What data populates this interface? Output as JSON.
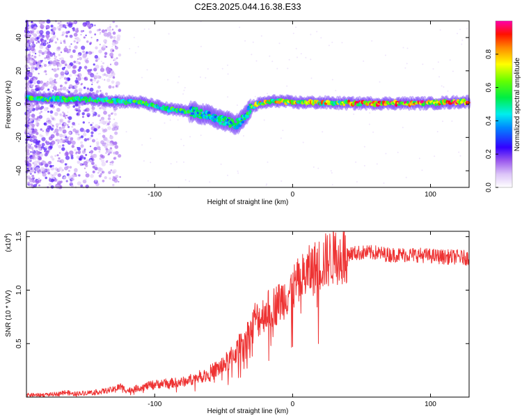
{
  "title": "C2E3.2025.044.16.38.E33",
  "chart_data": [
    {
      "type": "heatmap",
      "xlabel": "Height of straight line (km)",
      "ylabel": "Frequency (Hz)",
      "xlim": [
        -193,
        128
      ],
      "ylim": [
        -50,
        50
      ],
      "xticks": [
        -100,
        0,
        100
      ],
      "yticks": [
        -40,
        -20,
        0,
        20,
        40
      ],
      "grid": false,
      "colorbar": {
        "label": "Normalized spectral amplitude",
        "range": [
          0.0,
          1.0
        ],
        "ticks": [
          "0.0",
          "0.2",
          "0.4",
          "0.6",
          "0.8"
        ],
        "tick_values": [
          0.0,
          0.2,
          0.4,
          0.6,
          0.8
        ]
      },
      "ridge": {
        "x": [
          -193,
          -170,
          -150,
          -130,
          -110,
          -100,
          -90,
          -80,
          -70,
          -60,
          -50,
          -40,
          -35,
          -30,
          -25,
          -20,
          -10,
          0,
          20,
          40,
          60,
          80,
          100,
          128
        ],
        "y": [
          4,
          3,
          3,
          2,
          1,
          -1,
          -3,
          -4,
          -5,
          -7,
          -10,
          -12,
          -8,
          -2,
          0,
          1,
          2,
          1,
          1,
          0.5,
          0.5,
          0.5,
          0.5,
          1.5
        ]
      }
    },
    {
      "type": "line",
      "xlabel": "Height of straight line (km)",
      "ylabel": "SNR (10 * V/V)",
      "multiplier": "(x10",
      "multiplier_exp": "4",
      "multiplier_close": ")",
      "xlim": [
        -193,
        128
      ],
      "ylim": [
        0,
        1.55
      ],
      "xticks": [
        -100,
        0,
        100
      ],
      "yticks": [
        0.5,
        1.0,
        1.5
      ],
      "ytick_labels": [
        "0.5",
        "1.0",
        "1.5"
      ],
      "line_color": "#ee3333",
      "grid": false,
      "series": [
        {
          "x": [
            -193,
            -180,
            -170,
            -165,
            -160,
            -150,
            -140,
            -130,
            -125,
            -120,
            -110,
            -100,
            -90,
            -80,
            -70,
            -60,
            -50,
            -45,
            -40,
            -35,
            -30,
            -27,
            -25,
            -20,
            -15,
            -10,
            -5,
            0,
            5,
            10,
            15,
            20,
            25,
            30,
            40,
            50,
            60,
            70,
            80,
            90,
            100,
            110,
            120,
            128
          ],
          "values": [
            0.02,
            0.02,
            0.03,
            0.05,
            0.03,
            0.04,
            0.05,
            0.07,
            0.1,
            0.06,
            0.09,
            0.12,
            0.13,
            0.14,
            0.18,
            0.22,
            0.3,
            0.36,
            0.44,
            0.55,
            0.62,
            0.75,
            0.72,
            0.8,
            0.84,
            0.88,
            0.95,
            1.02,
            1.08,
            1.15,
            1.2,
            1.24,
            1.28,
            1.32,
            1.34,
            1.35,
            1.35,
            1.33,
            1.33,
            1.33,
            1.32,
            1.31,
            1.31,
            1.3
          ]
        }
      ]
    }
  ]
}
